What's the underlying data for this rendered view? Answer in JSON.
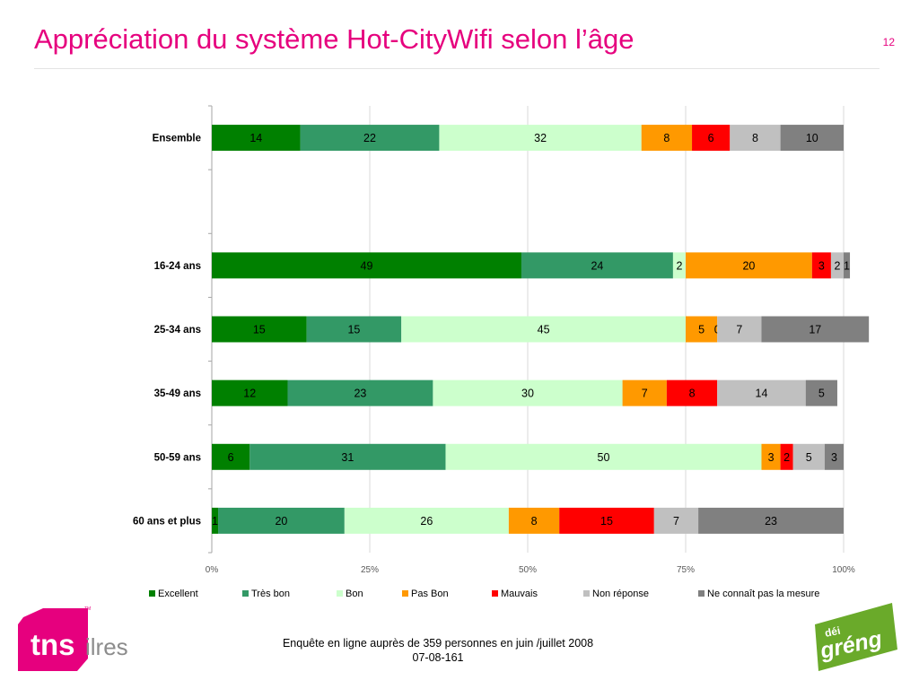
{
  "slide": {
    "title": "Appréciation du système Hot-CityWifi selon l’âge",
    "page_number": "12"
  },
  "footer": {
    "line1": "Enquête en ligne auprès de 359 personnes en juin /juillet 2008",
    "line2": "07-08-161"
  },
  "logos": {
    "tns": {
      "main": "tns",
      "suffix": "ilres",
      "tm": "TM"
    },
    "greng": {
      "top": "déi",
      "main": "gréng"
    }
  },
  "colors": {
    "accent": "#e6007e",
    "greng_green": "#6aaa2a"
  },
  "chart_data": {
    "type": "bar",
    "orientation": "horizontal",
    "stacked": "percent",
    "categories": [
      "Ensemble",
      "",
      "16-24 ans",
      "25-34 ans",
      "35-49 ans",
      "50-59 ans",
      "60 ans et plus"
    ],
    "x_ticks": [
      "0%",
      "25%",
      "50%",
      "75%",
      "100%"
    ],
    "xlim": [
      0,
      100
    ],
    "grid": true,
    "legend_position": "bottom",
    "series": [
      {
        "name": "Excellent",
        "color": "#008000",
        "values": [
          14,
          null,
          49,
          15,
          12,
          6,
          1
        ]
      },
      {
        "name": "Très bon",
        "color": "#339966",
        "values": [
          22,
          null,
          24,
          15,
          23,
          31,
          20
        ]
      },
      {
        "name": "Bon",
        "color": "#ccffcc",
        "values": [
          32,
          null,
          2,
          45,
          30,
          50,
          26
        ]
      },
      {
        "name": "Pas Bon",
        "color": "#ff9900",
        "values": [
          8,
          null,
          20,
          5,
          7,
          3,
          8
        ]
      },
      {
        "name": "Mauvais",
        "color": "#ff0000",
        "values": [
          6,
          null,
          3,
          0,
          8,
          2,
          15
        ]
      },
      {
        "name": "Non réponse",
        "color": "#c0c0c0",
        "values": [
          8,
          null,
          2,
          7,
          14,
          5,
          7
        ]
      },
      {
        "name": "Ne connaît pas la mesure",
        "color": "#808080",
        "values": [
          10,
          null,
          1,
          17,
          5,
          3,
          23
        ]
      }
    ]
  }
}
